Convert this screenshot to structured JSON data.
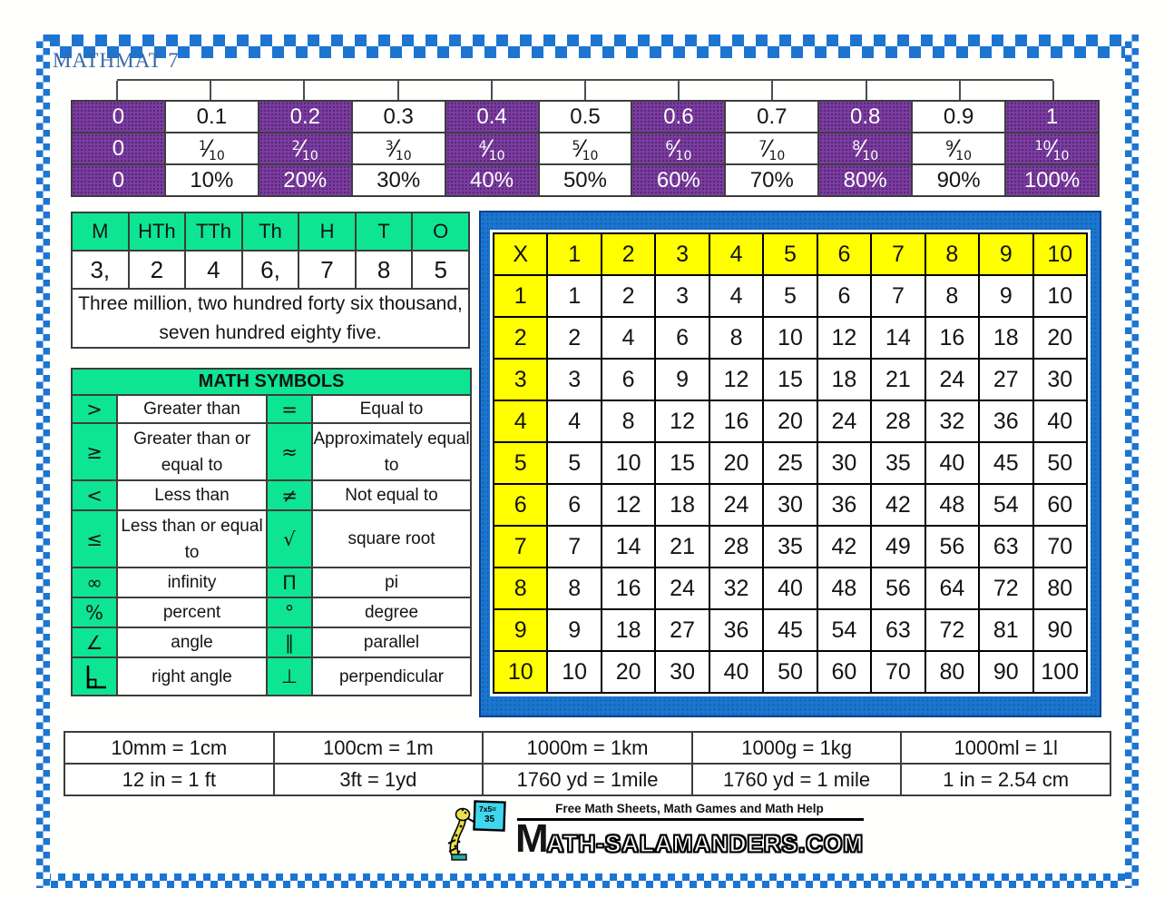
{
  "page": {
    "title": "MATHMAT 7"
  },
  "colors": {
    "purple": "#7b3da0",
    "green": "#0ee593",
    "yellow": "#ffff00",
    "frame_blue": "#1b76cf",
    "checker_blue": "#1c75d0",
    "title_blue": "#3a68a6"
  },
  "decimal_table": {
    "decimals": [
      "0",
      "0.1",
      "0.2",
      "0.3",
      "0.4",
      "0.5",
      "0.6",
      "0.7",
      "0.8",
      "0.9",
      "1"
    ],
    "fractions": [
      "0",
      {
        "n": "1",
        "d": "10"
      },
      {
        "n": "2",
        "d": "10"
      },
      {
        "n": "3",
        "d": "10"
      },
      {
        "n": "4",
        "d": "10"
      },
      {
        "n": "5",
        "d": "10"
      },
      {
        "n": "6",
        "d": "10"
      },
      {
        "n": "7",
        "d": "10"
      },
      {
        "n": "8",
        "d": "10"
      },
      {
        "n": "9",
        "d": "10"
      },
      {
        "n": "10",
        "d": "10"
      }
    ],
    "percents": [
      "0",
      "10%",
      "20%",
      "30%",
      "40%",
      "50%",
      "60%",
      "70%",
      "80%",
      "90%",
      "100%"
    ]
  },
  "place_value_table": {
    "headers": [
      "M",
      "HTh",
      "TTh",
      "Th",
      "H",
      "T",
      "O"
    ],
    "digits": [
      "3,",
      "2",
      "4",
      "6,",
      "7",
      "8",
      "5"
    ],
    "sentence": "Three million, two hundred forty six thousand, seven hundred eighty five."
  },
  "math_symbols": {
    "title": "MATH SYMBOLS",
    "rows": [
      {
        "sym1": ">",
        "desc1": "Greater than",
        "sym2": "=",
        "desc2": "Equal to"
      },
      {
        "sym1": "≥",
        "desc1": "Greater than or equal to",
        "sym2": "≈",
        "desc2": "Approximately equal to"
      },
      {
        "sym1": "<",
        "desc1": "Less than",
        "sym2": "≠",
        "desc2": "Not equal to"
      },
      {
        "sym1": "≤",
        "desc1": "Less than or equal to",
        "sym2": "√",
        "desc2": "square root"
      },
      {
        "sym1": "∞",
        "desc1": "infinity",
        "sym2": "Π",
        "desc2": "pi"
      },
      {
        "sym1": "%",
        "desc1": "percent",
        "sym2": "°",
        "desc2": "degree"
      },
      {
        "sym1": "∠",
        "desc1": "angle",
        "sym2": "∥",
        "desc2": "parallel"
      },
      {
        "sym1": {
          "icon": "right-angle-icon"
        },
        "desc1": "right angle",
        "sym2": "⊥",
        "desc2": "perpendicular"
      }
    ]
  },
  "multiplication_table": {
    "corner": "X",
    "headers": [
      "1",
      "2",
      "3",
      "4",
      "5",
      "6",
      "7",
      "8",
      "9",
      "10"
    ],
    "rows": [
      {
        "label": "1",
        "values": [
          "1",
          "2",
          "3",
          "4",
          "5",
          "6",
          "7",
          "8",
          "9",
          "10"
        ]
      },
      {
        "label": "2",
        "values": [
          "2",
          "4",
          "6",
          "8",
          "10",
          "12",
          "14",
          "16",
          "18",
          "20"
        ]
      },
      {
        "label": "3",
        "values": [
          "3",
          "6",
          "9",
          "12",
          "15",
          "18",
          "21",
          "24",
          "27",
          "30"
        ]
      },
      {
        "label": "4",
        "values": [
          "4",
          "8",
          "12",
          "16",
          "20",
          "24",
          "28",
          "32",
          "36",
          "40"
        ]
      },
      {
        "label": "5",
        "values": [
          "5",
          "10",
          "15",
          "20",
          "25",
          "30",
          "35",
          "40",
          "45",
          "50"
        ]
      },
      {
        "label": "6",
        "values": [
          "6",
          "12",
          "18",
          "24",
          "30",
          "36",
          "42",
          "48",
          "54",
          "60"
        ]
      },
      {
        "label": "7",
        "values": [
          "7",
          "14",
          "21",
          "28",
          "35",
          "42",
          "49",
          "56",
          "63",
          "70"
        ]
      },
      {
        "label": "8",
        "values": [
          "8",
          "16",
          "24",
          "32",
          "40",
          "48",
          "56",
          "64",
          "72",
          "80"
        ]
      },
      {
        "label": "9",
        "values": [
          "9",
          "18",
          "27",
          "36",
          "45",
          "54",
          "63",
          "72",
          "81",
          "90"
        ]
      },
      {
        "label": "10",
        "values": [
          "10",
          "20",
          "30",
          "40",
          "50",
          "60",
          "70",
          "80",
          "90",
          "100"
        ]
      }
    ]
  },
  "conversions": {
    "rows": [
      [
        "10mm = 1cm",
        "100cm = 1m",
        "1000m = 1km",
        "1000g = 1kg",
        "1000ml = 1l"
      ],
      [
        "12 in = 1 ft",
        "3ft = 1yd",
        "1760 yd = 1mile",
        "1760 yd = 1 mile",
        "1 in = 2.54 cm"
      ]
    ]
  },
  "footer": {
    "tagline": "Free Math Sheets, Math Games and Math Help",
    "site_prefix": "M",
    "site_rest": "ATH-SALAMANDERS.COM",
    "board_line1": "7x5=",
    "board_line2": "35"
  }
}
